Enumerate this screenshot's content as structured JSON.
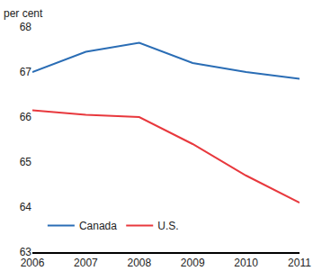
{
  "chart_data": {
    "type": "line",
    "ylabel": "per cent",
    "x": [
      2006,
      2007,
      2008,
      2009,
      2010,
      2011
    ],
    "series": [
      {
        "name": "Canada",
        "color": "#2a6db5",
        "values": [
          67.0,
          67.45,
          67.65,
          67.2,
          67.0,
          66.85
        ]
      },
      {
        "name": "U.S.",
        "color": "#e8383d",
        "values": [
          66.15,
          66.05,
          66.0,
          65.4,
          64.7,
          64.1
        ]
      }
    ],
    "xlim": [
      2006,
      2011
    ],
    "xticks": [
      2006,
      2007,
      2008,
      2009,
      2010,
      2011
    ],
    "ylim": [
      63,
      68
    ],
    "yticks": [
      63,
      64,
      65,
      66,
      67,
      68
    ],
    "grid": false,
    "legend": "lower left"
  }
}
